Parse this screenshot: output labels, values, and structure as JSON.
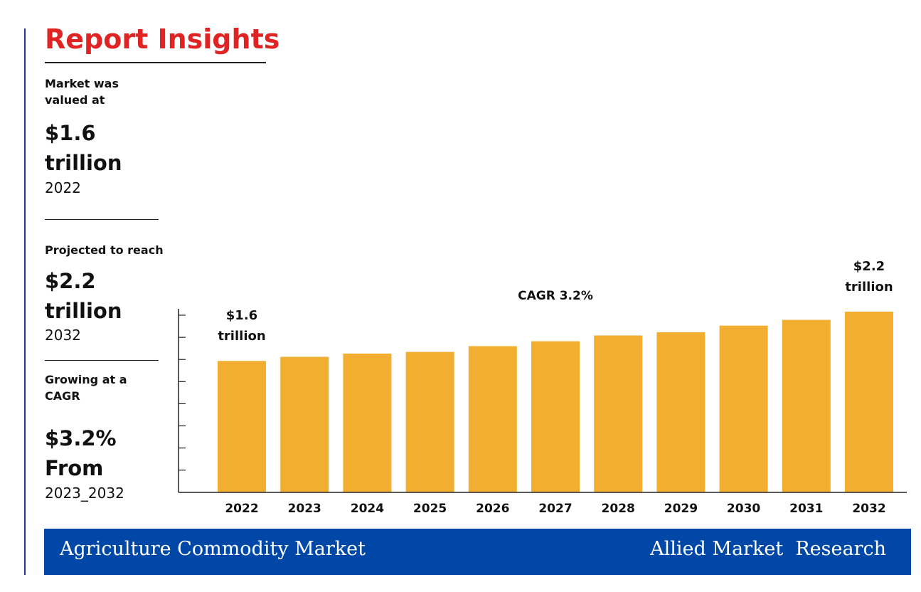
{
  "header": {
    "title": "Report Insights"
  },
  "insights": [
    {
      "label": "Market was valued at",
      "value": "$1.6 trillion",
      "period": "2022"
    },
    {
      "label": "Projected to reach",
      "value": "$2.2 trillion",
      "period": "2032"
    },
    {
      "label": "Growing at a CAGR",
      "value": "$3.2% From",
      "period": "2023_2032"
    }
  ],
  "chart_data": {
    "type": "bar",
    "annotation": "CAGR 3.2%",
    "categories": [
      "2022",
      "2023",
      "2024",
      "2025",
      "2026",
      "2027",
      "2028",
      "2029",
      "2030",
      "2031",
      "2032"
    ],
    "values": [
      1.6,
      1.65,
      1.69,
      1.71,
      1.78,
      1.84,
      1.91,
      1.95,
      2.03,
      2.1,
      2.2
    ],
    "value_labels": [
      "$1.6 trillion",
      null,
      null,
      null,
      null,
      null,
      null,
      null,
      null,
      null,
      "$2.2 trillion"
    ],
    "color": "#f2ae30",
    "ylim": [
      0,
      2.2
    ]
  },
  "footer": {
    "left": "Agriculture Commodity Market",
    "right": "Allied Market  Research"
  }
}
